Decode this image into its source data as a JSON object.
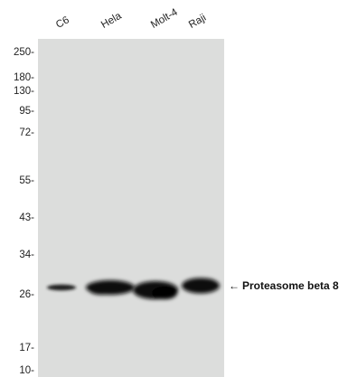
{
  "lanes": [
    "C6",
    "Hela",
    "Molt-4",
    "Raji"
  ],
  "markers": [
    "250-",
    "180-",
    "130-",
    "95-",
    "72-",
    "55-",
    "43-",
    "34-",
    "26-",
    "17-",
    "10-"
  ],
  "band_label": {
    "arrow": "←",
    "text": "Proteasome beta 8"
  },
  "colors": {
    "membrane": "#dcdddc",
    "band": "#111111",
    "text": "#222222"
  }
}
